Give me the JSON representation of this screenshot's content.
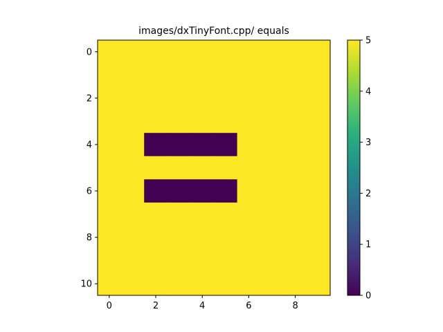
{
  "chart_data": {
    "type": "heatmap",
    "title": "images/dxTinyFont.cpp/ equals",
    "colormap": "viridis",
    "vmin": 0,
    "vmax": 5,
    "columns": 10,
    "rows": 11,
    "x_ticks": [
      0,
      2,
      4,
      6,
      8
    ],
    "y_ticks": [
      0,
      2,
      4,
      6,
      8,
      10
    ],
    "colorbar_ticks": [
      0,
      1,
      2,
      3,
      4,
      5
    ],
    "values": [
      [
        5,
        5,
        5,
        5,
        5,
        5,
        5,
        5,
        5,
        5
      ],
      [
        5,
        5,
        5,
        5,
        5,
        5,
        5,
        5,
        5,
        5
      ],
      [
        5,
        5,
        5,
        5,
        5,
        5,
        5,
        5,
        5,
        5
      ],
      [
        5,
        5,
        5,
        5,
        5,
        5,
        5,
        5,
        5,
        5
      ],
      [
        5,
        5,
        0,
        0,
        0,
        0,
        5,
        5,
        5,
        5
      ],
      [
        5,
        5,
        5,
        5,
        5,
        5,
        5,
        5,
        5,
        5
      ],
      [
        5,
        5,
        0,
        0,
        0,
        0,
        5,
        5,
        5,
        5
      ],
      [
        5,
        5,
        5,
        5,
        5,
        5,
        5,
        5,
        5,
        5
      ],
      [
        5,
        5,
        5,
        5,
        5,
        5,
        5,
        5,
        5,
        5
      ],
      [
        5,
        5,
        5,
        5,
        5,
        5,
        5,
        5,
        5,
        5
      ],
      [
        5,
        5,
        5,
        5,
        5,
        5,
        5,
        5,
        5,
        5
      ]
    ]
  }
}
